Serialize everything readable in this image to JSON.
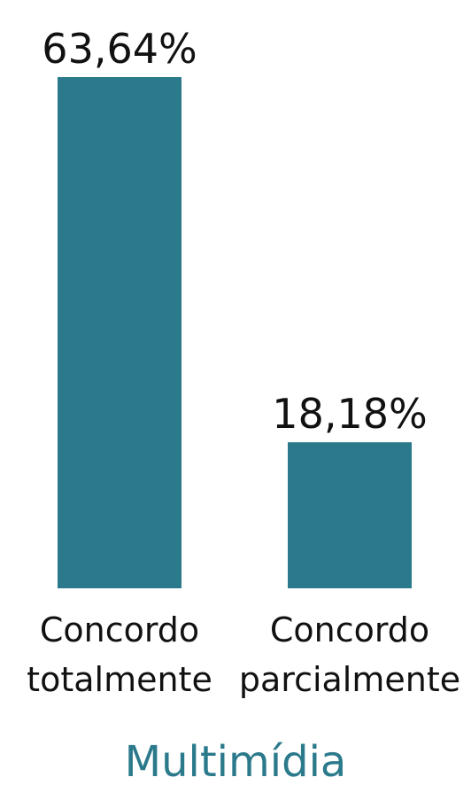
{
  "chart_data": {
    "type": "bar",
    "title": "Multimídia",
    "xlabel": "",
    "ylabel": "",
    "ylim": [
      0,
      63.64
    ],
    "grid": false,
    "bar_color": "#2b7a8c",
    "title_color": "#2b7a8c",
    "categories": [
      [
        "Concordo",
        "totalmente"
      ],
      [
        "Concordo",
        "parcialmente"
      ]
    ],
    "values": [
      63.64,
      18.18
    ],
    "value_labels": [
      "63,64%",
      "18,18%"
    ]
  }
}
